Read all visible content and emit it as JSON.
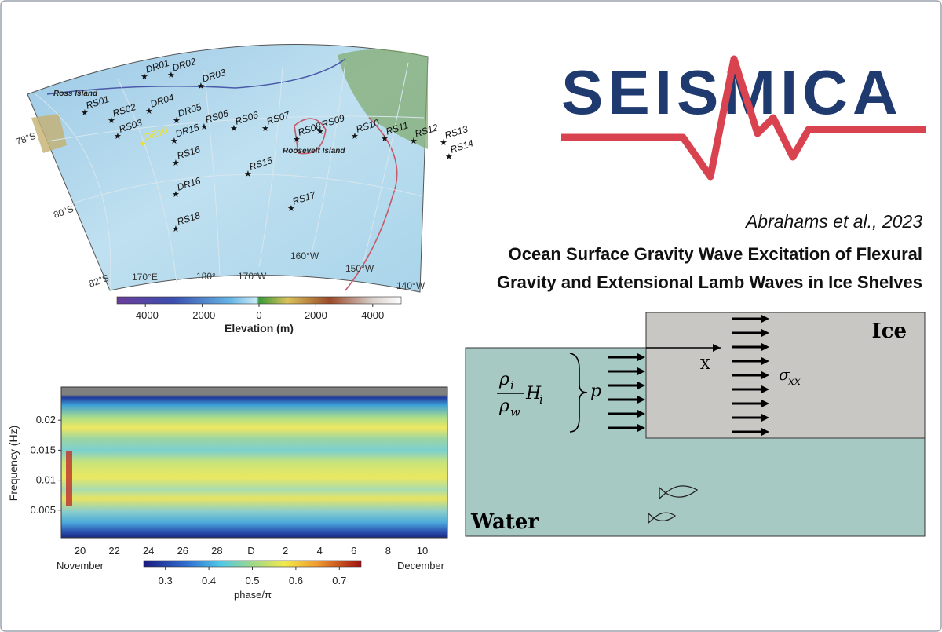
{
  "logo": "SEISMICA",
  "citation": "Abrahams et al., 2023",
  "title_lines": [
    "Ocean Surface Gravity Wave Excitation of Flexural",
    "Gravity and Extensional Lamb Waves in Ice Shelves"
  ],
  "map": {
    "stations": [
      "RS01",
      "RS02",
      "DR01",
      "DR02",
      "DR03",
      "DR04",
      "DR05",
      "RS03",
      "DR10",
      "DR15",
      "RS05",
      "RS06",
      "RS07",
      "RS08",
      "RS09",
      "RS10",
      "RS11",
      "RS12",
      "RS13",
      "RS14",
      "RS16",
      "RS15",
      "DR16",
      "RS17",
      "RS18"
    ],
    "places": [
      "Ross Island",
      "Roosevelt Island"
    ],
    "lat_labels": [
      "78°S",
      "80°S",
      "82°S"
    ],
    "lon_labels": [
      "170°E",
      "180°",
      "170°W",
      "160°W",
      "150°W",
      "140°W"
    ],
    "colorbar": {
      "label": "Elevation (m)",
      "lim": [
        -5000,
        5000
      ],
      "ticks": [
        -4000,
        -2000,
        0,
        2000,
        4000
      ]
    }
  },
  "spectrogram": {
    "ylabel": "Frequency (Hz)",
    "ylim": [
      0,
      0.025
    ],
    "yticks": [
      0.005,
      0.01,
      0.015,
      0.02
    ],
    "xtick_labels": [
      "20",
      "22",
      "24",
      "26",
      "28",
      "D",
      "2",
      "4",
      "6",
      "8",
      "10"
    ],
    "month_labels": [
      "November",
      "December"
    ],
    "colorbar": {
      "label": "phase/π",
      "lim": [
        0.25,
        0.75
      ],
      "ticks": [
        0.3,
        0.4,
        0.5,
        0.6,
        0.7
      ]
    }
  },
  "diagram": {
    "ice": "Ice",
    "water": "Water",
    "x_axis": "X",
    "pressure": "p",
    "stress": "σ",
    "stress_sub": "xx",
    "rho": "ρ",
    "rho_i_sub": "i",
    "rho_w_sub": "w",
    "thickness": "H",
    "thickness_sub": "i"
  }
}
